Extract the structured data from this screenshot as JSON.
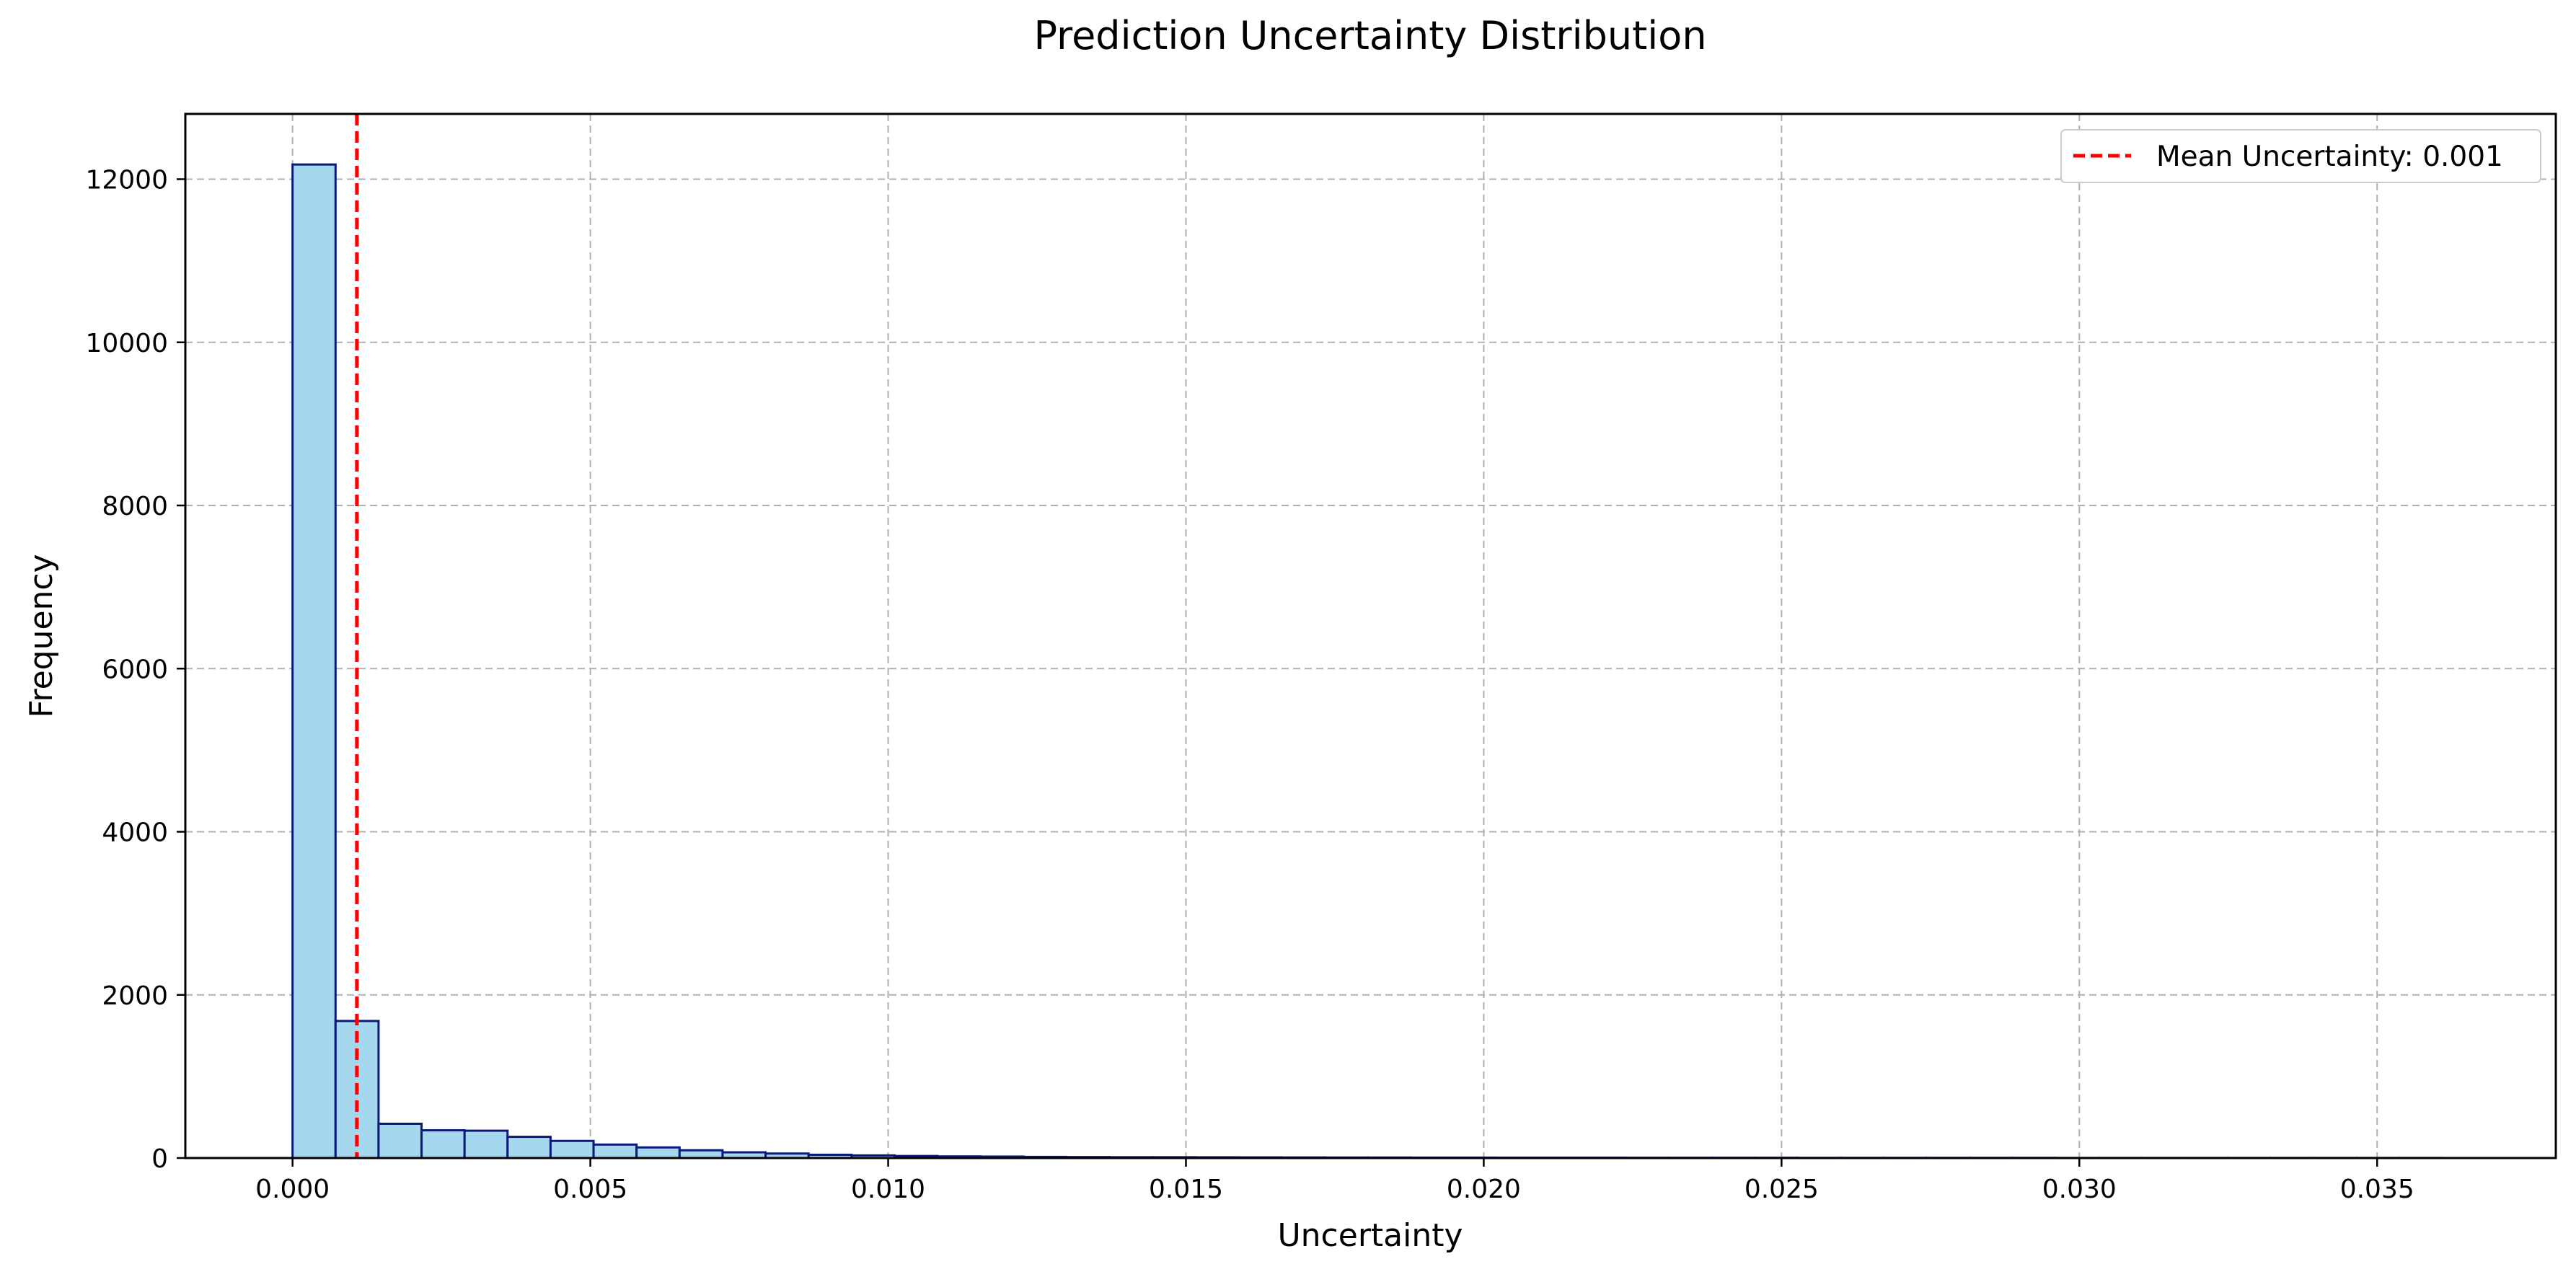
{
  "chart_data": {
    "type": "bar",
    "title": "Prediction Uncertainty Distribution",
    "xlabel": "Uncertainty",
    "ylabel": "Frequency",
    "xlim": [
      -0.0018,
      0.038
    ],
    "ylim": [
      0,
      12800
    ],
    "x_ticks": [
      {
        "value": 0.0,
        "label": "0.000"
      },
      {
        "value": 0.005,
        "label": "0.005"
      },
      {
        "value": 0.01,
        "label": "0.010"
      },
      {
        "value": 0.015,
        "label": "0.015"
      },
      {
        "value": 0.02,
        "label": "0.020"
      },
      {
        "value": 0.025,
        "label": "0.025"
      },
      {
        "value": 0.03,
        "label": "0.030"
      },
      {
        "value": 0.035,
        "label": "0.035"
      }
    ],
    "y_ticks": [
      {
        "value": 0,
        "label": "0"
      },
      {
        "value": 2000,
        "label": "2000"
      },
      {
        "value": 4000,
        "label": "4000"
      },
      {
        "value": 6000,
        "label": "6000"
      },
      {
        "value": 8000,
        "label": "8000"
      },
      {
        "value": 10000,
        "label": "10000"
      },
      {
        "value": 12000,
        "label": "12000"
      }
    ],
    "grid": true,
    "bin_start": 0.0,
    "bin_width": 0.000722,
    "counts": [
      12180,
      1680,
      420,
      340,
      335,
      260,
      210,
      165,
      130,
      95,
      70,
      55,
      40,
      32,
      25,
      20,
      18,
      14,
      12,
      10,
      10,
      9,
      8,
      7,
      6,
      6,
      5,
      5,
      4,
      4,
      4,
      3,
      3,
      3,
      3,
      2,
      2,
      2,
      2,
      2,
      2,
      1,
      1,
      1,
      1,
      1,
      1,
      1,
      1,
      1
    ],
    "bar_fill": "#a5d8ef",
    "bar_edge": "#0b1a7a",
    "mean_line": {
      "value": 0.00108,
      "label": "Mean Uncertainty: 0.001",
      "color": "#ff0000",
      "style": "dashed"
    },
    "legend_position": "upper right"
  }
}
